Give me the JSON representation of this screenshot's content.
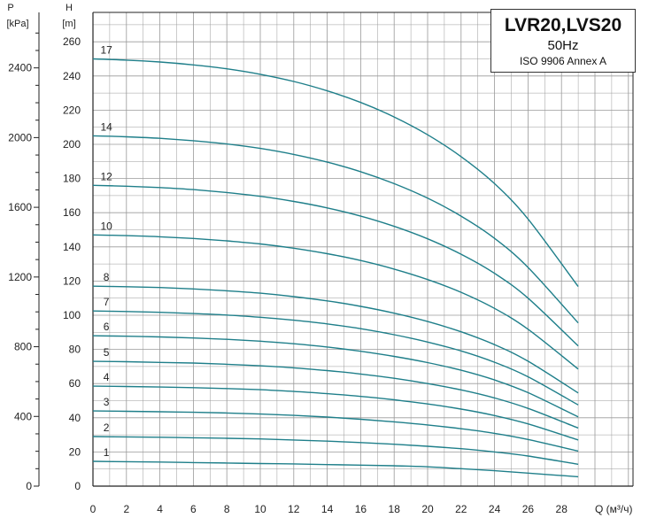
{
  "chart_data": {
    "type": "line",
    "title": "LVR20,LVS20",
    "subtitle": "50Hz",
    "standard": "ISO 9906 Annex A",
    "xlabel": "Q (м³/ч)",
    "ylabel_left": "P",
    "ylabel_left_unit": "[kPa]",
    "ylabel_right": "H",
    "ylabel_right_unit": "[m]",
    "xlim": [
      0,
      32
    ],
    "ylim": [
      0,
      265
    ],
    "xticks": [
      "0",
      "2",
      "4",
      "6",
      "8",
      "10",
      "12",
      "14",
      "16",
      "18",
      "20",
      "22",
      "24",
      "26",
      "28"
    ],
    "yticks_h": [
      "0",
      "20",
      "40",
      "60",
      "80",
      "100",
      "120",
      "140",
      "160",
      "180",
      "200",
      "220",
      "240",
      "260"
    ],
    "yticks_p": [
      "0",
      "400",
      "800",
      "1200",
      "1600",
      "2000",
      "2400"
    ],
    "grid": true,
    "x": [
      0,
      2,
      4,
      6,
      8,
      10,
      12,
      14,
      16,
      18,
      20,
      22,
      24,
      26,
      29
    ],
    "series": [
      {
        "name": "1",
        "values": [
          14.5,
          14.3,
          14.1,
          13.8,
          13.5,
          13.2,
          13.0,
          12.6,
          12.3,
          11.9,
          11.3,
          10.2,
          9.0,
          7.6,
          5.5
        ]
      },
      {
        "name": "2",
        "values": [
          29,
          28.8,
          28.6,
          28.3,
          28.0,
          27.6,
          27.0,
          26.3,
          25.5,
          24.5,
          23.3,
          21.9,
          20.0,
          17.6,
          12.8
        ]
      },
      {
        "name": "3",
        "values": [
          44,
          43.8,
          43.5,
          43.2,
          42.8,
          42.2,
          41.4,
          40.4,
          39.1,
          37.6,
          35.8,
          33.6,
          30.9,
          27.3,
          20.5
        ]
      },
      {
        "name": "4",
        "values": [
          58.5,
          58.3,
          58.0,
          57.6,
          57.1,
          56.4,
          55.4,
          54.1,
          52.5,
          50.5,
          48.1,
          45.1,
          41.3,
          36.4,
          27.0
        ]
      },
      {
        "name": "5",
        "values": [
          73,
          72.8,
          72.4,
          72.0,
          71.3,
          70.4,
          69.2,
          67.6,
          65.6,
          63.1,
          60.0,
          56.3,
          51.6,
          45.5,
          34.0
        ]
      },
      {
        "name": "6",
        "values": [
          88,
          87.7,
          87.3,
          86.7,
          85.9,
          84.8,
          83.3,
          81.4,
          78.9,
          75.9,
          72.3,
          67.8,
          62.1,
          54.7,
          40.5
        ]
      },
      {
        "name": "7",
        "values": [
          102.5,
          102.2,
          101.7,
          101.0,
          100.1,
          98.8,
          97.1,
          94.9,
          92.1,
          88.6,
          84.3,
          79.1,
          72.5,
          64.0,
          47.5
        ]
      },
      {
        "name": "8",
        "values": [
          117,
          116.7,
          116.2,
          115.4,
          114.3,
          112.9,
          110.9,
          108.4,
          105.2,
          101.2,
          96.3,
          90.3,
          82.8,
          73.1,
          54.5
        ]
      },
      {
        "name": "10",
        "values": [
          147,
          146.6,
          145.9,
          144.9,
          143.5,
          141.7,
          139.2,
          136.0,
          132.0,
          127.0,
          120.9,
          113.4,
          104.0,
          91.8,
          68.5
        ]
      },
      {
        "name": "12",
        "values": [
          176,
          175.5,
          174.7,
          173.5,
          171.8,
          169.6,
          166.6,
          162.8,
          158.0,
          152.0,
          144.7,
          135.7,
          124.5,
          110.0,
          82.0
        ]
      },
      {
        "name": "14",
        "values": [
          205,
          204.4,
          203.5,
          202.1,
          200.2,
          197.6,
          194.1,
          189.6,
          184.0,
          177.0,
          168.5,
          158.0,
          145.0,
          128.0,
          95.5
        ]
      },
      {
        "name": "17",
        "values": [
          250,
          249.3,
          248.2,
          246.5,
          244.2,
          241.0,
          236.8,
          231.3,
          224.5,
          216.0,
          205.6,
          192.8,
          177.0,
          156.3,
          116.8
        ]
      }
    ]
  },
  "colors": {
    "curve": "#1f7f8a",
    "grid": "#9a9a9a",
    "axis": "#222222"
  }
}
